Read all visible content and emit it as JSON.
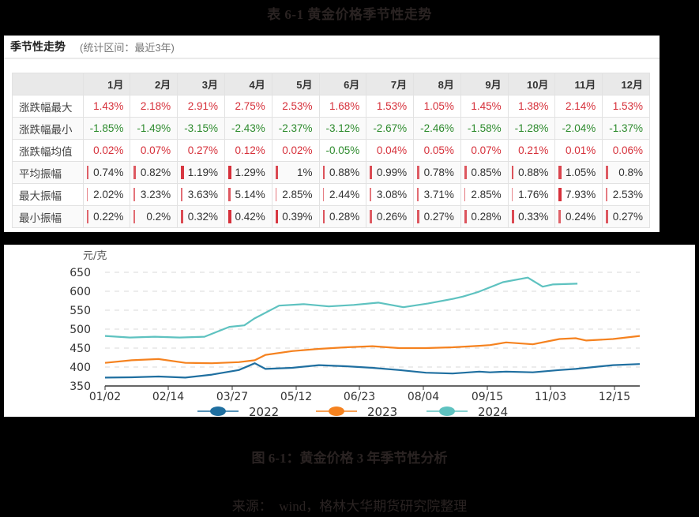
{
  "title": "表 6-1 黄金价格季节性走势",
  "table_panel": {
    "heading": "季节性走势",
    "subheading": "(统计区间：最近3年)",
    "columns": [
      "",
      "1月",
      "2月",
      "3月",
      "4月",
      "5月",
      "6月",
      "7月",
      "8月",
      "9月",
      "10月",
      "11月",
      "12月"
    ],
    "rows": [
      {
        "label": "涨跌幅最大",
        "type": "sign",
        "values": [
          "1.43%",
          "2.18%",
          "2.91%",
          "2.75%",
          "2.53%",
          "1.68%",
          "1.53%",
          "1.05%",
          "1.45%",
          "1.38%",
          "2.14%",
          "1.53%"
        ]
      },
      {
        "label": "涨跌幅最小",
        "type": "sign",
        "values": [
          "-1.85%",
          "-1.49%",
          "-3.15%",
          "-2.43%",
          "-2.37%",
          "-3.12%",
          "-2.67%",
          "-2.46%",
          "-1.58%",
          "-1.28%",
          "-2.04%",
          "-1.37%"
        ]
      },
      {
        "label": "涨跌幅均值",
        "type": "sign",
        "values": [
          "0.02%",
          "0.07%",
          "0.27%",
          "0.12%",
          "0.02%",
          "-0.05%",
          "0.04%",
          "0.05%",
          "0.07%",
          "0.21%",
          "0.01%",
          "0.06%"
        ]
      },
      {
        "label": "平均振幅",
        "type": "bar",
        "values": [
          "0.74%",
          "0.82%",
          "1.19%",
          "1.29%",
          "1%",
          "0.88%",
          "0.99%",
          "0.78%",
          "0.85%",
          "0.88%",
          "1.05%",
          "0.8%"
        ]
      },
      {
        "label": "最大振幅",
        "type": "bar",
        "values": [
          "2.02%",
          "3.23%",
          "3.63%",
          "5.14%",
          "2.85%",
          "2.44%",
          "3.08%",
          "3.71%",
          "2.85%",
          "1.76%",
          "7.93%",
          "2.53%"
        ]
      },
      {
        "label": "最小振幅",
        "type": "bar",
        "values": [
          "0.22%",
          "0.2%",
          "0.32%",
          "0.42%",
          "0.39%",
          "0.28%",
          "0.26%",
          "0.27%",
          "0.28%",
          "0.33%",
          "0.24%",
          "0.27%"
        ]
      }
    ]
  },
  "chart_data": {
    "type": "line",
    "title": "",
    "ylabel": "元/克",
    "xlabel": "",
    "ylim": [
      350,
      650
    ],
    "yticks": [
      350,
      400,
      450,
      500,
      550,
      600,
      650
    ],
    "xticks": [
      "01/02",
      "02/14",
      "03/27",
      "05/12",
      "06/23",
      "08/04",
      "09/15",
      "11/03",
      "12/15"
    ],
    "grid": "horizontal dashed",
    "legend_position": "bottom",
    "x_index": [
      0,
      0.05,
      0.1,
      0.15,
      0.2,
      0.25,
      0.28,
      0.3,
      0.35,
      0.4,
      0.45,
      0.5,
      0.55,
      0.6,
      0.65,
      0.7,
      0.72,
      0.75,
      0.8,
      0.85,
      0.88,
      0.9,
      0.95,
      1.0
    ],
    "series": [
      {
        "name": "2022",
        "color": "#1f6fa0",
        "values": [
          372,
          373,
          375,
          372,
          380,
          392,
          410,
          395,
          398,
          405,
          402,
          398,
          392,
          385,
          383,
          388,
          386,
          388,
          386,
          392,
          395,
          398,
          405,
          408
        ]
      },
      {
        "name": "2023",
        "color": "#f5821f",
        "values": [
          411,
          418,
          421,
          411,
          410,
          413,
          418,
          432,
          442,
          448,
          452,
          455,
          450,
          450,
          452,
          456,
          458,
          465,
          460,
          474,
          476,
          470,
          474,
          482
        ]
      },
      {
        "name": "2024",
        "color": "#5ec2c0",
        "values": [
          482,
          478,
          480,
          478,
          480,
          506,
          510,
          528,
          562,
          566,
          560,
          564,
          570,
          558,
          568,
          580,
          586,
          598,
          624,
          636,
          612,
          618,
          620,
          null
        ]
      }
    ]
  },
  "figure_caption": "图 6-1：黄金价格 3 年季节性分析",
  "source": "来源：　wind，格林大华期货研究院整理"
}
